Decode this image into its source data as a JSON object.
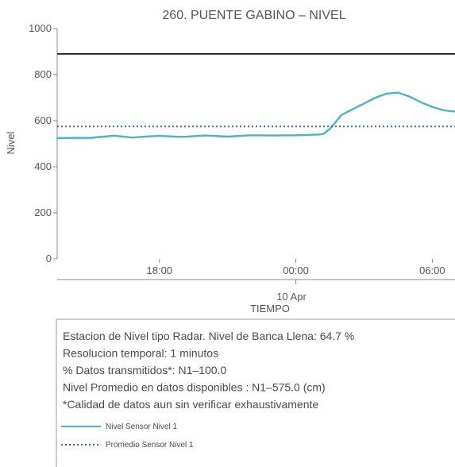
{
  "chart_data": {
    "type": "line",
    "title": "260. PUENTE GABINO – NIVEL",
    "ylabel": "Nivel",
    "xlabel": "TIEMPO",
    "ylim": [
      0,
      1000
    ],
    "yticks": [
      0,
      200,
      400,
      600,
      800,
      1000
    ],
    "xlim": [
      -10.5,
      7.0
    ],
    "xticks": [
      {
        "value": -6,
        "label": "18:00"
      },
      {
        "value": 0,
        "label": "00:00"
      },
      {
        "value": 6,
        "label": "06:00"
      }
    ],
    "date_label": "10 Apr",
    "grid": false,
    "reference_lines": [
      {
        "name": "banca-llena",
        "y": 890,
        "color": "#1a1a1a",
        "style": "solid"
      }
    ],
    "series": [
      {
        "name": "Nivel Sensor Nivel 1",
        "color": "#4ab5c3",
        "style": "solid",
        "x": [
          -10.5,
          -9.0,
          -8.0,
          -7.2,
          -6.5,
          -6.0,
          -5.0,
          -4.0,
          -3.0,
          -2.0,
          -1.0,
          0.0,
          1.0,
          1.2,
          1.5,
          1.8,
          2.0,
          2.5,
          3.0,
          3.5,
          4.0,
          4.5,
          5.0,
          5.5,
          6.0,
          6.5,
          7.0
        ],
        "y": [
          525,
          526,
          535,
          527,
          532,
          534,
          530,
          536,
          531,
          537,
          536,
          537,
          540,
          542,
          565,
          600,
          625,
          650,
          675,
          700,
          718,
          722,
          705,
          680,
          660,
          645,
          640
        ]
      },
      {
        "name": "Promedio Sensor Nivel 1",
        "color": "#2e6fb5",
        "style": "dotted",
        "x": [
          -10.5,
          7.0
        ],
        "y": [
          575,
          575
        ]
      }
    ]
  },
  "info_box": {
    "lines": [
      "Estacion de Nivel tipo Radar. Nivel de Banca Llena: 64.7 %",
      "Resolucion temporal: 1 minutos",
      "% Datos transmitidos*: N1–100.0",
      "Nivel Promedio en datos disponibles : N1–575.0 (cm)",
      "*Calidad de datos aun sin verificar exhaustivamente"
    ],
    "legend": [
      {
        "label": "Nivel Sensor Nivel 1",
        "color": "#4ab5c3",
        "style": "solid"
      },
      {
        "label": "Promedio Sensor Nivel 1",
        "color": "#2e6fb5",
        "style": "dotted"
      }
    ]
  }
}
